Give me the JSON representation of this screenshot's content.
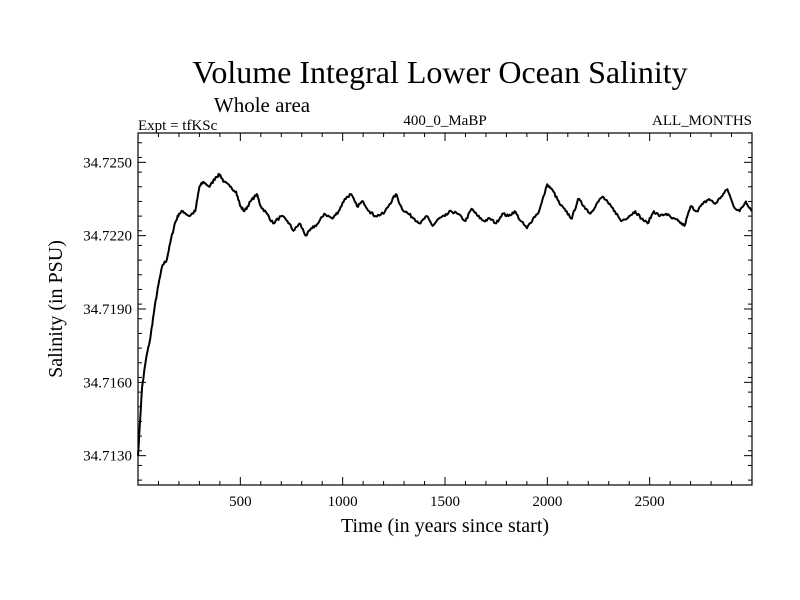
{
  "chart_data": {
    "type": "line",
    "title": "Volume Integral Lower Ocean Salinity",
    "subtitle": "Whole area",
    "left_label": "Expt = tfKSc",
    "center_label": "400_0_MaBP",
    "right_label": "ALL_MONTHS",
    "xlabel": "Time (in years since start)",
    "ylabel": "Salinity (in PSU)",
    "xlim": [
      0,
      3000
    ],
    "ylim": [
      34.7118,
      34.7262
    ],
    "xticks": [
      500,
      1000,
      1500,
      2000,
      2500
    ],
    "xtick_labels": [
      "500",
      "1000",
      "1500",
      "2000",
      "2500"
    ],
    "yticks": [
      34.713,
      34.716,
      34.719,
      34.722,
      34.725
    ],
    "ytick_labels": [
      "34.7130",
      "34.7160",
      "34.7190",
      "34.7220",
      "34.7250"
    ],
    "grid": false,
    "series": [
      {
        "name": "Salinity",
        "x": [
          0,
          20,
          40,
          60,
          80,
          100,
          120,
          140,
          160,
          180,
          200,
          220,
          250,
          280,
          300,
          320,
          350,
          380,
          400,
          420,
          450,
          480,
          500,
          520,
          550,
          580,
          600,
          630,
          660,
          700,
          730,
          760,
          790,
          820,
          850,
          880,
          910,
          950,
          980,
          1010,
          1040,
          1070,
          1100,
          1130,
          1160,
          1200,
          1230,
          1260,
          1290,
          1320,
          1350,
          1380,
          1410,
          1440,
          1470,
          1500,
          1530,
          1560,
          1600,
          1630,
          1660,
          1690,
          1720,
          1750,
          1780,
          1810,
          1840,
          1870,
          1900,
          1930,
          1960,
          2000,
          2030,
          2060,
          2090,
          2120,
          2150,
          2180,
          2210,
          2240,
          2270,
          2300,
          2330,
          2360,
          2400,
          2430,
          2460,
          2490,
          2520,
          2550,
          2580,
          2610,
          2640,
          2670,
          2700,
          2730,
          2760,
          2790,
          2820,
          2850,
          2880,
          2910,
          2940,
          2970,
          3000
        ],
        "values": [
          34.713,
          34.7158,
          34.717,
          34.7178,
          34.719,
          34.72,
          34.7208,
          34.721,
          34.7218,
          34.7225,
          34.7229,
          34.723,
          34.7228,
          34.723,
          34.724,
          34.7242,
          34.724,
          34.7244,
          34.7245,
          34.7242,
          34.724,
          34.7238,
          34.7232,
          34.723,
          34.7234,
          34.7237,
          34.7232,
          34.7229,
          34.7225,
          34.7228,
          34.7226,
          34.7222,
          34.7225,
          34.722,
          34.7223,
          34.7225,
          34.7229,
          34.7227,
          34.723,
          34.7235,
          34.7237,
          34.7232,
          34.7234,
          34.723,
          34.7228,
          34.7229,
          34.7233,
          34.7237,
          34.7231,
          34.7229,
          34.7227,
          34.7225,
          34.7228,
          34.7224,
          34.7227,
          34.7228,
          34.723,
          34.7229,
          34.7226,
          34.7231,
          34.7228,
          34.7226,
          34.7227,
          34.7225,
          34.7229,
          34.7228,
          34.723,
          34.7226,
          34.7223,
          34.7227,
          34.723,
          34.7241,
          34.7238,
          34.7233,
          34.723,
          34.7227,
          34.7235,
          34.7232,
          34.7229,
          34.7233,
          34.7236,
          34.7233,
          34.723,
          34.7226,
          34.7228,
          34.723,
          34.7227,
          34.7225,
          34.723,
          34.7228,
          34.7229,
          34.7227,
          34.7226,
          34.7224,
          34.7232,
          34.723,
          34.7233,
          34.7235,
          34.7233,
          34.7236,
          34.7239,
          34.7232,
          34.723,
          34.7234,
          34.723
        ]
      }
    ]
  }
}
